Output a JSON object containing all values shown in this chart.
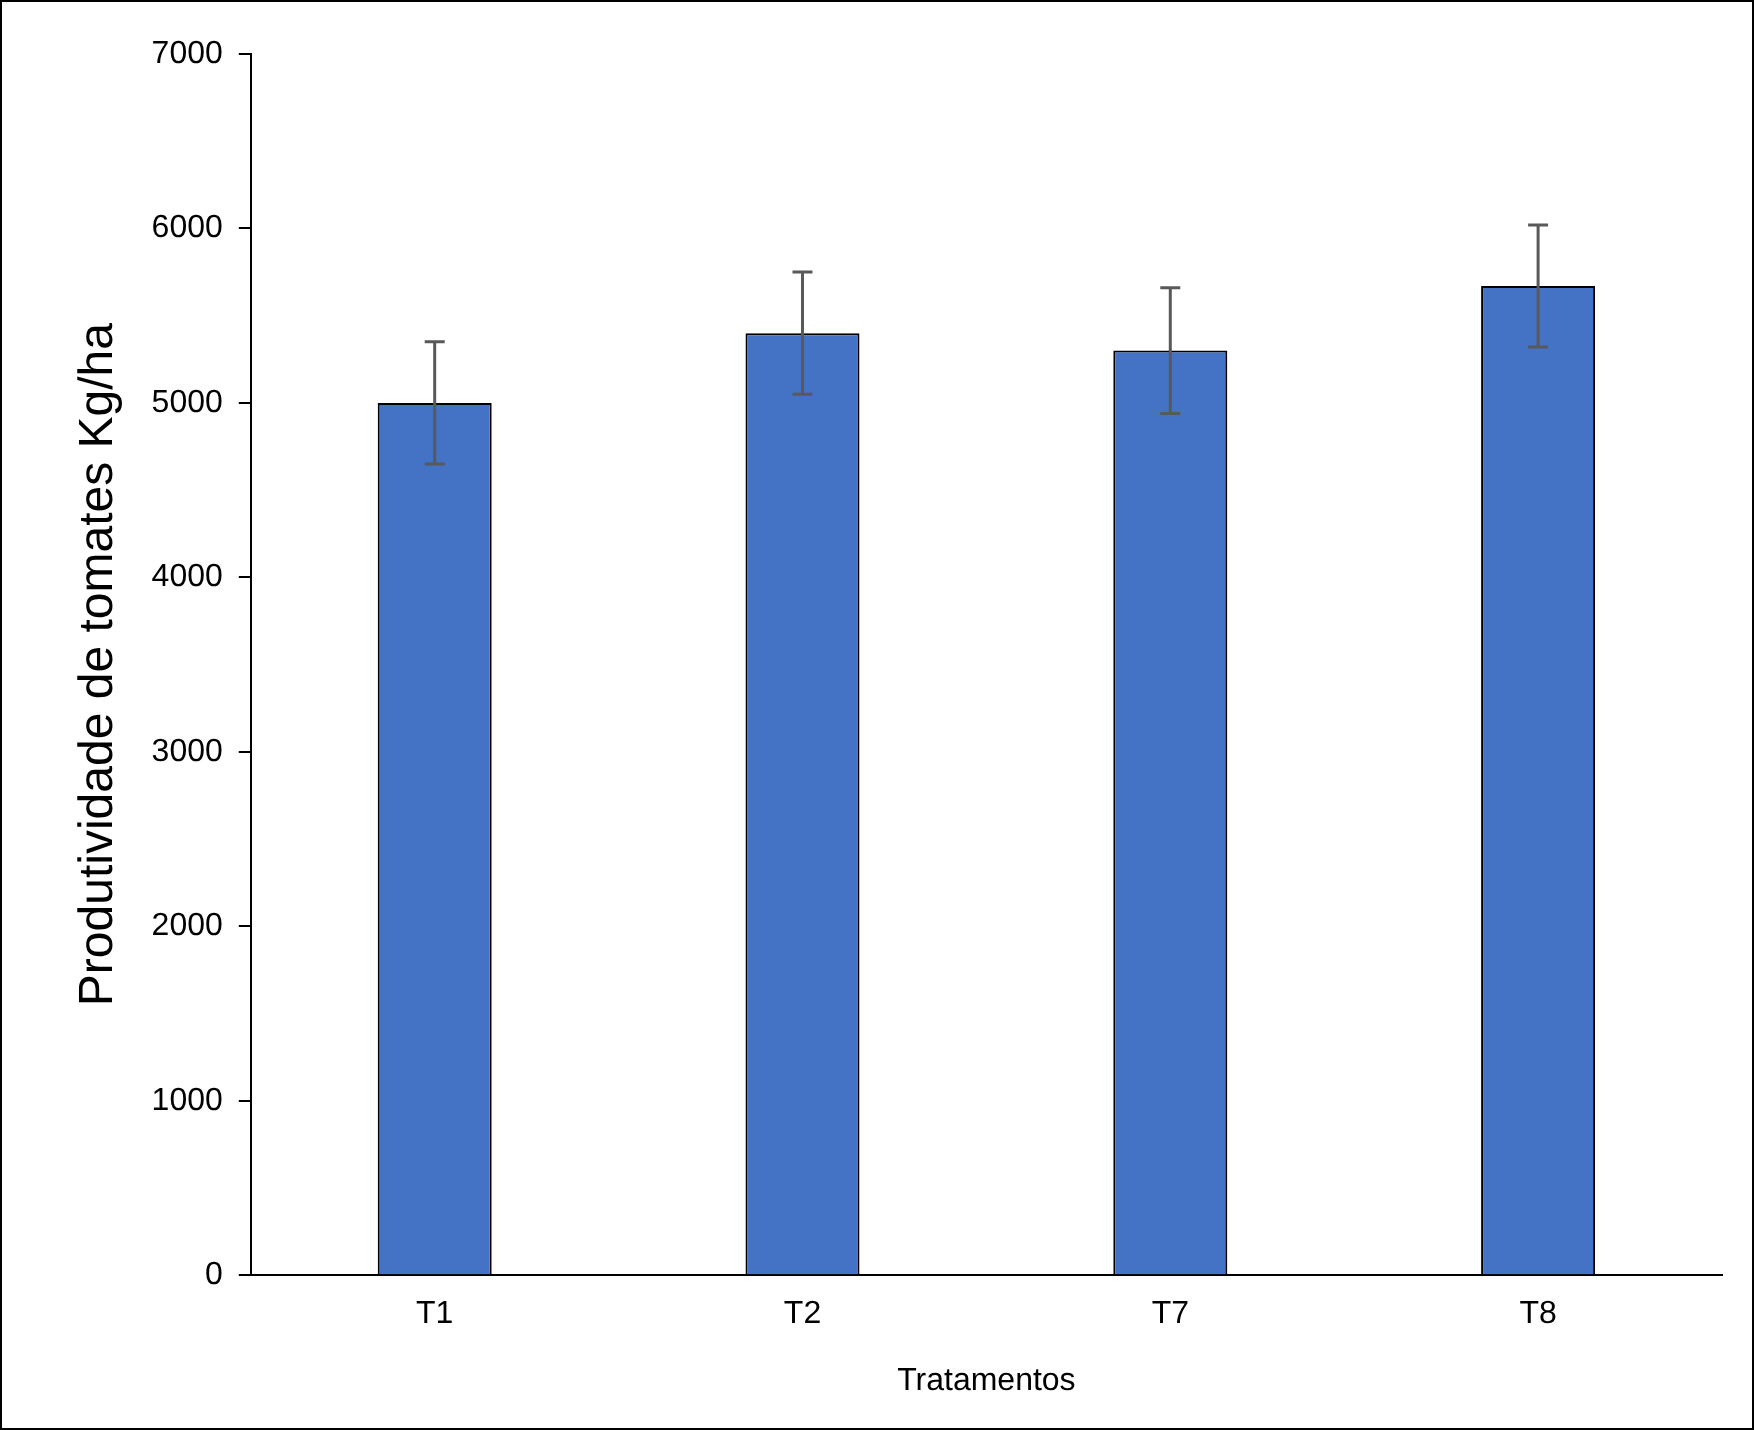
{
  "chart_data": {
    "type": "bar",
    "xlabel": "Tratamentos",
    "ylabel": "Produtividade de tomates Kg/ha",
    "categories": [
      "T1",
      "T2",
      "T7",
      "T8"
    ],
    "series": [
      {
        "color": "#4472c4",
        "values": [
          5000,
          5400,
          5300,
          5670
        ],
        "errors": [
          350,
          350,
          360,
          350
        ]
      }
    ],
    "ylim": [
      0,
      7000
    ],
    "yticks": [
      0,
      1000,
      2000,
      3000,
      4000,
      5000,
      6000,
      7000
    ],
    "grid": false,
    "legend": false
  }
}
